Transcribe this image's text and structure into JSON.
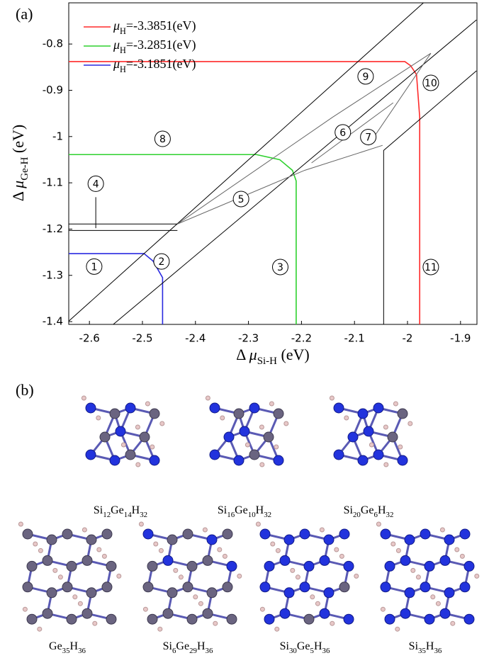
{
  "chart_data": {
    "type": "line",
    "panel_label": "(a)",
    "xlabel": [
      "Δ ",
      "μ",
      "Si-H",
      " (eV)"
    ],
    "ylabel": [
      "Δ ",
      "μ",
      "Ge-H",
      " (eV)"
    ],
    "xlim": [
      -2.639,
      -1.869
    ],
    "ylim": [
      -1.406,
      -0.711
    ],
    "xticks": [
      -2.6,
      -2.5,
      -2.4,
      -2.3,
      -2.2,
      -2.1,
      -2,
      -1.9
    ],
    "yticks": [
      -0.8,
      -0.9,
      -1,
      -1.1,
      -1.2,
      -1.3,
      -1.4
    ],
    "series": [
      {
        "name": [
          "μ",
          "H",
          "=-3.3851(eV)"
        ],
        "color": "#ff2a2a",
        "x": [
          -2.639,
          -2.005,
          -1.994,
          -1.983,
          -1.977,
          -1.977
        ],
        "y": [
          -0.838,
          -0.838,
          -0.847,
          -0.866,
          -0.958,
          -1.406
        ]
      },
      {
        "name": [
          "μ",
          "H",
          "=-3.2851(eV)"
        ],
        "color": "#2ed12e",
        "x": [
          -2.639,
          -2.285,
          -2.241,
          -2.217,
          -2.21,
          -2.21
        ],
        "y": [
          -1.039,
          -1.039,
          -1.05,
          -1.073,
          -1.096,
          -1.406
        ]
      },
      {
        "name": [
          "μ",
          "H",
          "=-3.1851(eV)"
        ],
        "color": "#2a2ae0",
        "x": [
          -2.639,
          -2.497,
          -2.48,
          -2.462,
          -2.462
        ],
        "y": [
          -1.253,
          -1.253,
          -1.269,
          -1.305,
          -1.406
        ]
      },
      {
        "color": "#000000",
        "x": [
          -2.639,
          -1.97
        ],
        "y": [
          -1.399,
          -0.711
        ]
      },
      {
        "color": "#000000",
        "x": [
          -2.555,
          -1.87
        ],
        "y": [
          -1.406,
          -0.748
        ]
      },
      {
        "color": "#000000",
        "x": [
          -1.87,
          -2.045,
          -2.045
        ],
        "y": [
          -0.858,
          -1.03,
          -1.406
        ]
      },
      {
        "color": "#000000",
        "x": [
          -2.639,
          -2.434
        ],
        "y": [
          -1.189,
          -1.189
        ]
      },
      {
        "color": "#000000",
        "x": [
          -2.639,
          -2.434
        ],
        "y": [
          -1.203,
          -1.203
        ]
      },
      {
        "color": "#000000",
        "x": [
          -2.588,
          -2.588
        ],
        "y": [
          -1.131,
          -1.198
        ]
      },
      {
        "color": "#666666",
        "x": [
          -2.434,
          -2.141,
          -1.956
        ],
        "y": [
          -1.189,
          -0.958,
          -0.82
        ]
      },
      {
        "color": "#666666",
        "x": [
          -2.434,
          -2.194,
          -2.047
        ],
        "y": [
          -1.189,
          -1.073,
          -1.019
        ]
      },
      {
        "color": "#666666",
        "x": [
          -2.181,
          -2.027
        ],
        "y": [
          -1.057,
          -0.927
        ]
      },
      {
        "color": "#666666",
        "x": [
          -2.074,
          -1.956
        ],
        "y": [
          -1.019,
          -0.82
        ]
      }
    ],
    "annotations": [
      {
        "text": "1",
        "x": -2.591,
        "y": -1.281
      },
      {
        "text": "2",
        "x": -2.464,
        "y": -1.27
      },
      {
        "text": "3",
        "x": -2.24,
        "y": -1.282
      },
      {
        "text": "4",
        "x": -2.588,
        "y": -1.102
      },
      {
        "text": "5",
        "x": -2.314,
        "y": -1.135
      },
      {
        "text": "6",
        "x": -2.122,
        "y": -0.991
      },
      {
        "text": "7",
        "x": -2.074,
        "y": -1.001
      },
      {
        "text": "8",
        "x": -2.462,
        "y": -1.005
      },
      {
        "text": "9",
        "x": -2.079,
        "y": -0.87
      },
      {
        "text": "10",
        "x": -1.956,
        "y": -0.884
      },
      {
        "text": "11",
        "x": -1.956,
        "y": -1.282
      }
    ]
  },
  "panel_b": {
    "label": "(b)",
    "structures": [
      {
        "formula": [
          "Si",
          "12",
          "Ge",
          "14",
          "H",
          "32"
        ]
      },
      {
        "formula": [
          "Si",
          "16",
          "Ge",
          "10",
          "H",
          "32"
        ]
      },
      {
        "formula": [
          "Si",
          "20",
          "Ge",
          "6",
          "H",
          "32"
        ]
      },
      {
        "formula": [
          "Ge",
          "35",
          "H",
          "36"
        ]
      },
      {
        "formula": [
          "Si",
          "6",
          "Ge",
          "29",
          "H",
          "36"
        ]
      },
      {
        "formula": [
          "Si",
          "30",
          "Ge",
          "5",
          "H",
          "36"
        ]
      },
      {
        "formula": [
          "Si",
          "35",
          "H",
          "36"
        ]
      }
    ]
  }
}
